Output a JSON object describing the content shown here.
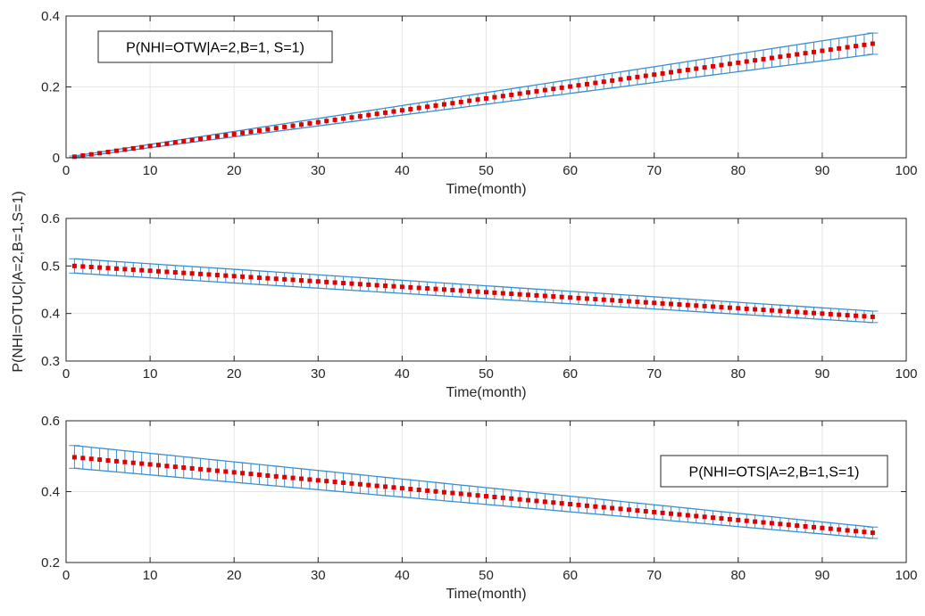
{
  "figure": {
    "shared_ylabel": "P(NHI=OTUC|A=2,B=1,S=1)",
    "colors": {
      "band": "#3a8fd0",
      "mean": "#e00000",
      "grid": "#e6e6e6",
      "axis": "#262626"
    }
  },
  "chart_data": [
    {
      "type": "line",
      "title": "",
      "xlabel": "Time(month)",
      "ylabel": "",
      "xlim": [
        0,
        100
      ],
      "ylim": [
        0,
        0.4
      ],
      "xticks": [
        "0",
        "10",
        "20",
        "30",
        "40",
        "50",
        "60",
        "70",
        "80",
        "90",
        "100"
      ],
      "yticks": [
        "0",
        "0.2",
        "0.4"
      ],
      "legend": {
        "text": "P(NHI=OTW|A=2,B=1, S=1)",
        "position": "top-left"
      },
      "grid": true,
      "n_points": 96,
      "mean": {
        "start": 0.003,
        "end": 0.322
      },
      "upper": {
        "start": 0.005,
        "end": 0.352
      },
      "lower": {
        "start": 0.001,
        "end": 0.292
      }
    },
    {
      "type": "line",
      "title": "",
      "xlabel": "Time(month)",
      "ylabel": "",
      "xlim": [
        0,
        100
      ],
      "ylim": [
        0.3,
        0.6
      ],
      "xticks": [
        "0",
        "10",
        "20",
        "30",
        "40",
        "50",
        "60",
        "70",
        "80",
        "90",
        "100"
      ],
      "yticks": [
        "0.3",
        "0.4",
        "0.5",
        "0.6"
      ],
      "legend": null,
      "grid": true,
      "n_points": 96,
      "mean": {
        "start": 0.5,
        "end": 0.393
      },
      "upper": {
        "start": 0.515,
        "end": 0.405
      },
      "lower": {
        "start": 0.485,
        "end": 0.381
      }
    },
    {
      "type": "line",
      "title": "",
      "xlabel": "Time(month)",
      "ylabel": "",
      "xlim": [
        0,
        100
      ],
      "ylim": [
        0.2,
        0.6
      ],
      "xticks": [
        "0",
        "10",
        "20",
        "30",
        "40",
        "50",
        "60",
        "70",
        "80",
        "90",
        "100"
      ],
      "yticks": [
        "0.2",
        "0.4",
        "0.6"
      ],
      "legend": {
        "text": "P(NHI=OTS|A=2,B=1,S=1)",
        "position": "top-right"
      },
      "grid": true,
      "n_points": 96,
      "mean": {
        "start": 0.497,
        "end": 0.284
      },
      "upper": {
        "start": 0.53,
        "end": 0.3
      },
      "lower": {
        "start": 0.466,
        "end": 0.268
      }
    }
  ]
}
